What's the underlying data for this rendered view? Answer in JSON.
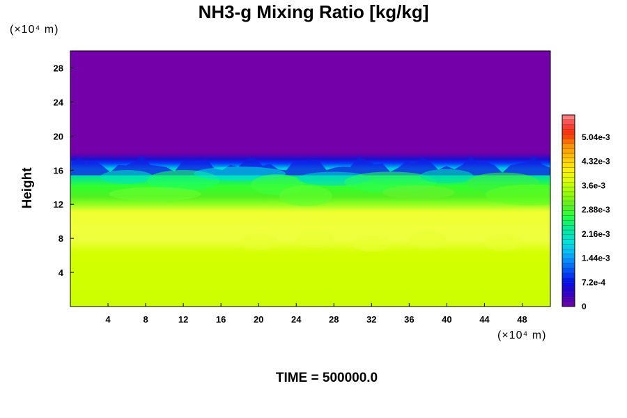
{
  "chart_data": {
    "type": "heatmap",
    "title": "NH3-g Mixing Ratio [kg/kg]",
    "ylabel": "Height",
    "x_unit": "(×10⁴ m)",
    "y_unit": "(×10⁴ m)",
    "xlim": [
      0,
      51
    ],
    "ylim": [
      0,
      30
    ],
    "x_ticks": [
      4,
      8,
      12,
      16,
      20,
      24,
      28,
      32,
      36,
      40,
      44,
      48
    ],
    "y_ticks": [
      4,
      8,
      12,
      16,
      20,
      24,
      28
    ],
    "colorbar": {
      "min": 0,
      "max": 0.0057,
      "labels": [
        "0",
        "7.2e-4",
        "1.44e-3",
        "2.16e-3",
        "2.88e-3",
        "3.6e-3",
        "4.32e-3",
        "5.04e-3"
      ],
      "label_values": [
        0,
        0.00072,
        0.00144,
        0.00216,
        0.00288,
        0.0036,
        0.00432,
        0.00504
      ]
    },
    "field": {
      "upper_layer_value": 0,
      "lower_layer_value": 0.0038,
      "mid_layer_value": 0.0034,
      "transition_height": 17,
      "mixed_layer_top": 16,
      "mixed_layer_bottom": 12
    },
    "footer": "TIME = 500000.0"
  }
}
